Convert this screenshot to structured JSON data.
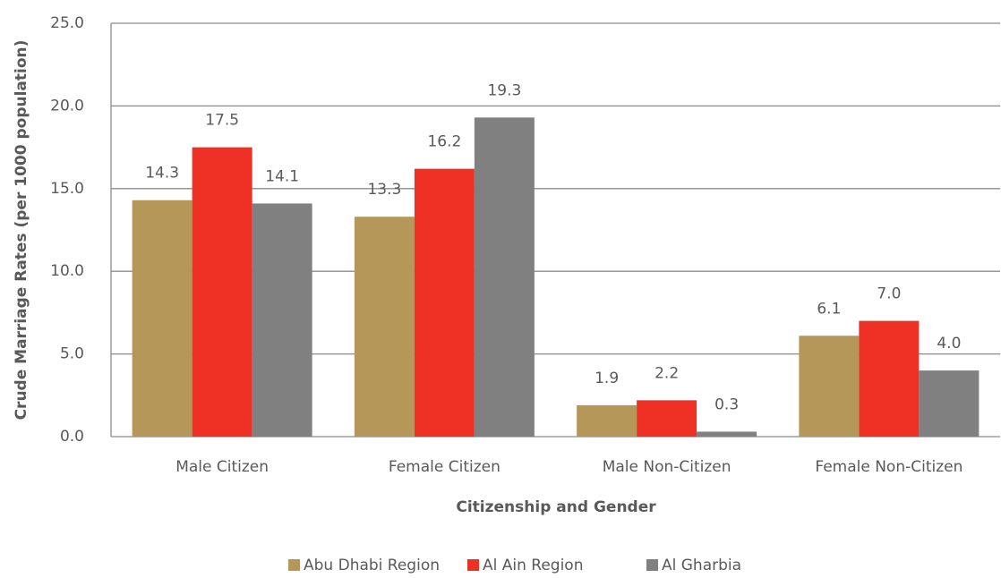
{
  "chart_data": {
    "type": "bar",
    "categories": [
      "Male Citizen",
      "Female Citizen",
      "Male Non-Citizen",
      "Female Non-Citizen"
    ],
    "series": [
      {
        "name": "Abu Dhabi Region",
        "color": "#b5975a",
        "values": [
          14.3,
          13.3,
          1.9,
          6.1
        ],
        "value_labels": [
          "14.3",
          "13.3",
          "1.9",
          "6.1"
        ]
      },
      {
        "name": "Al Ain Region",
        "color": "#ee3124",
        "values": [
          17.5,
          16.2,
          2.2,
          7.0
        ],
        "value_labels": [
          "17.5",
          "16.2",
          "2.2",
          "7.0"
        ]
      },
      {
        "name": "Al Gharbia",
        "color": "#808080",
        "values": [
          14.1,
          19.3,
          0.3,
          4.0
        ],
        "value_labels": [
          "14.1",
          "19.3",
          "0.3",
          "4.0"
        ]
      }
    ],
    "xlabel": "Citizenship and Gender",
    "ylabel": "Crude Marriage Rates (per 1000 population)",
    "ylim": [
      0,
      25
    ],
    "yticks": [
      {
        "value": 0,
        "label": "0.0"
      },
      {
        "value": 5,
        "label": "5.0"
      },
      {
        "value": 10,
        "label": "10.0"
      },
      {
        "value": 15,
        "label": "15.0"
      },
      {
        "value": 20,
        "label": "20.0"
      },
      {
        "value": 25,
        "label": "25.0"
      }
    ],
    "grid": true,
    "legend": "bottom"
  }
}
